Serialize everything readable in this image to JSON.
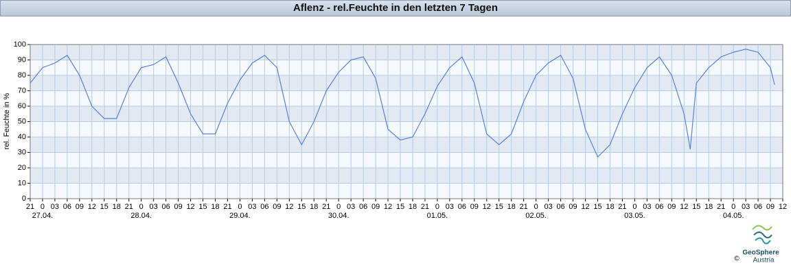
{
  "chart_data": {
    "type": "line",
    "title": "Aflenz - rel.Feuchte in den letzten 7 Tagen",
    "y_label": "rel. Feuchte in %",
    "xlim": [
      0,
      183
    ],
    "ylim": [
      0,
      100
    ],
    "yticks": [
      0,
      10,
      20,
      30,
      40,
      50,
      60,
      70,
      80,
      90,
      100
    ],
    "xticks": [
      {
        "value": 0,
        "label": "21"
      },
      {
        "value": 3,
        "label": "0"
      },
      {
        "value": 6,
        "label": "03"
      },
      {
        "value": 9,
        "label": "06"
      },
      {
        "value": 12,
        "label": "09"
      },
      {
        "value": 15,
        "label": "12"
      },
      {
        "value": 18,
        "label": "15"
      },
      {
        "value": 21,
        "label": "18"
      },
      {
        "value": 24,
        "label": "21"
      },
      {
        "value": 27,
        "label": "0"
      },
      {
        "value": 30,
        "label": "03"
      },
      {
        "value": 33,
        "label": "06"
      },
      {
        "value": 36,
        "label": "09"
      },
      {
        "value": 39,
        "label": "12"
      },
      {
        "value": 42,
        "label": "15"
      },
      {
        "value": 45,
        "label": "18"
      },
      {
        "value": 48,
        "label": "21"
      },
      {
        "value": 51,
        "label": "0"
      },
      {
        "value": 54,
        "label": "03"
      },
      {
        "value": 57,
        "label": "06"
      },
      {
        "value": 60,
        "label": "09"
      },
      {
        "value": 63,
        "label": "12"
      },
      {
        "value": 66,
        "label": "15"
      },
      {
        "value": 69,
        "label": "18"
      },
      {
        "value": 72,
        "label": "21"
      },
      {
        "value": 75,
        "label": "0"
      },
      {
        "value": 78,
        "label": "03"
      },
      {
        "value": 81,
        "label": "06"
      },
      {
        "value": 84,
        "label": "09"
      },
      {
        "value": 87,
        "label": "12"
      },
      {
        "value": 90,
        "label": "15"
      },
      {
        "value": 93,
        "label": "18"
      },
      {
        "value": 96,
        "label": "21"
      },
      {
        "value": 99,
        "label": "0"
      },
      {
        "value": 102,
        "label": "03"
      },
      {
        "value": 105,
        "label": "06"
      },
      {
        "value": 108,
        "label": "09"
      },
      {
        "value": 111,
        "label": "12"
      },
      {
        "value": 114,
        "label": "15"
      },
      {
        "value": 117,
        "label": "18"
      },
      {
        "value": 120,
        "label": "21"
      },
      {
        "value": 123,
        "label": "0"
      },
      {
        "value": 126,
        "label": "03"
      },
      {
        "value": 129,
        "label": "06"
      },
      {
        "value": 132,
        "label": "09"
      },
      {
        "value": 135,
        "label": "12"
      },
      {
        "value": 138,
        "label": "15"
      },
      {
        "value": 141,
        "label": "18"
      },
      {
        "value": 144,
        "label": "21"
      },
      {
        "value": 147,
        "label": "0"
      },
      {
        "value": 150,
        "label": "03"
      },
      {
        "value": 153,
        "label": "06"
      },
      {
        "value": 156,
        "label": "09"
      },
      {
        "value": 159,
        "label": "12"
      },
      {
        "value": 162,
        "label": "15"
      },
      {
        "value": 165,
        "label": "18"
      },
      {
        "value": 168,
        "label": "21"
      },
      {
        "value": 171,
        "label": "0"
      },
      {
        "value": 174,
        "label": "03"
      },
      {
        "value": 177,
        "label": "06"
      },
      {
        "value": 180,
        "label": "09"
      },
      {
        "value": 183,
        "label": "12"
      }
    ],
    "date_ticks": [
      {
        "value": 3,
        "label": "27.04."
      },
      {
        "value": 27,
        "label": "28.04."
      },
      {
        "value": 51,
        "label": "29.04."
      },
      {
        "value": 75,
        "label": "30.04."
      },
      {
        "value": 99,
        "label": "01.05."
      },
      {
        "value": 123,
        "label": "02.05."
      },
      {
        "value": 147,
        "label": "03.05."
      },
      {
        "value": 171,
        "label": "04.05."
      }
    ],
    "x": [
      0,
      3,
      6,
      9,
      12,
      15,
      18,
      21,
      24,
      27,
      30,
      33,
      36,
      39,
      42,
      45,
      48,
      51,
      54,
      57,
      60,
      63,
      66,
      69,
      72,
      75,
      78,
      81,
      84,
      87,
      90,
      93,
      96,
      99,
      102,
      105,
      108,
      111,
      114,
      117,
      120,
      123,
      126,
      129,
      132,
      135,
      138,
      141,
      144,
      147,
      150,
      153,
      156,
      159,
      160.5,
      162,
      165,
      168,
      171,
      174,
      177,
      180,
      181
    ],
    "series": [
      {
        "name": "rel. Feuchte",
        "color": "#5a80d8",
        "values": [
          75,
          85,
          88,
          93,
          80,
          60,
          52,
          52,
          72,
          85,
          87,
          92,
          75,
          55,
          42,
          42,
          62,
          77,
          88,
          93,
          85,
          50,
          35,
          50,
          70,
          82,
          90,
          92,
          78,
          45,
          38,
          40,
          55,
          73,
          85,
          92,
          75,
          42,
          35,
          42,
          63,
          80,
          88,
          93,
          78,
          45,
          27,
          35,
          55,
          72,
          85,
          92,
          80,
          55,
          32,
          75,
          85,
          92,
          95,
          97,
          95,
          85,
          74
        ]
      }
    ],
    "grid": true,
    "logo": {
      "name": "GeoSphere",
      "sub": "Austria",
      "copyright": "©"
    }
  }
}
